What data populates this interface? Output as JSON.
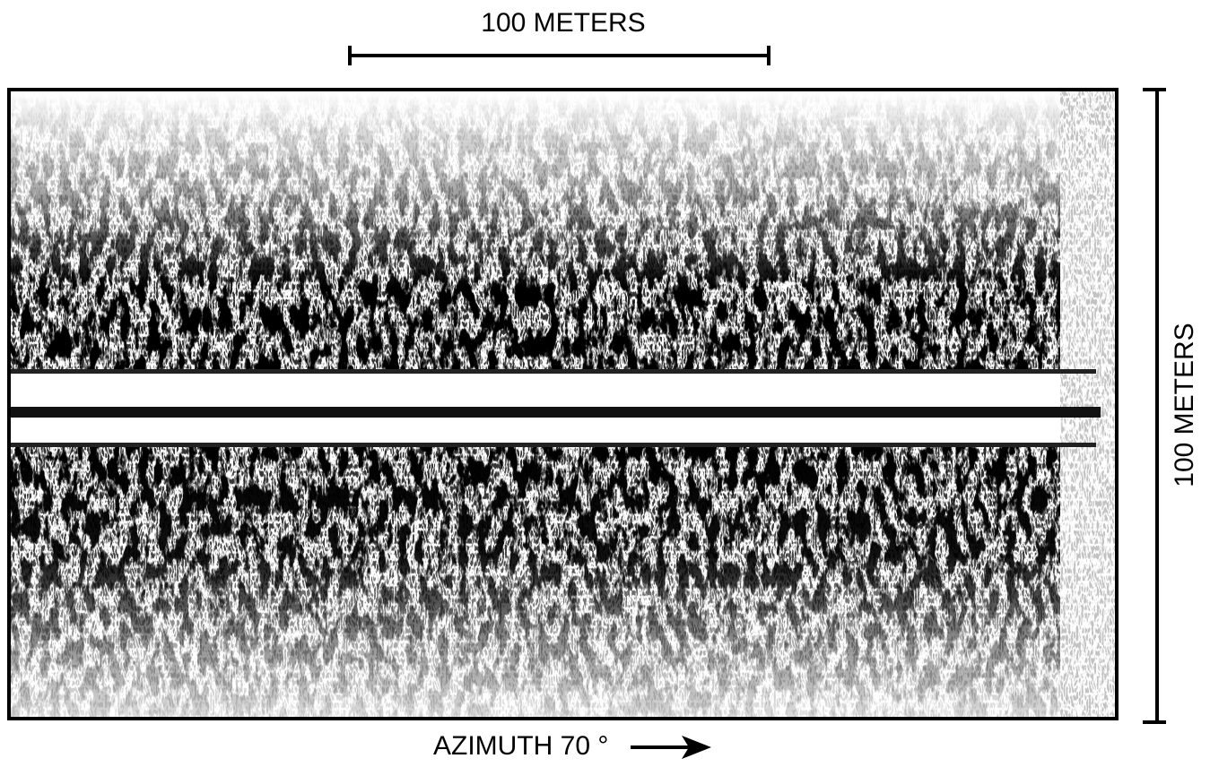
{
  "scale_bars": {
    "horizontal": {
      "label": "100 METERS"
    },
    "vertical": {
      "label": "100 METERS"
    }
  },
  "caption": {
    "label": "AZIMUTH 70 °"
  }
}
